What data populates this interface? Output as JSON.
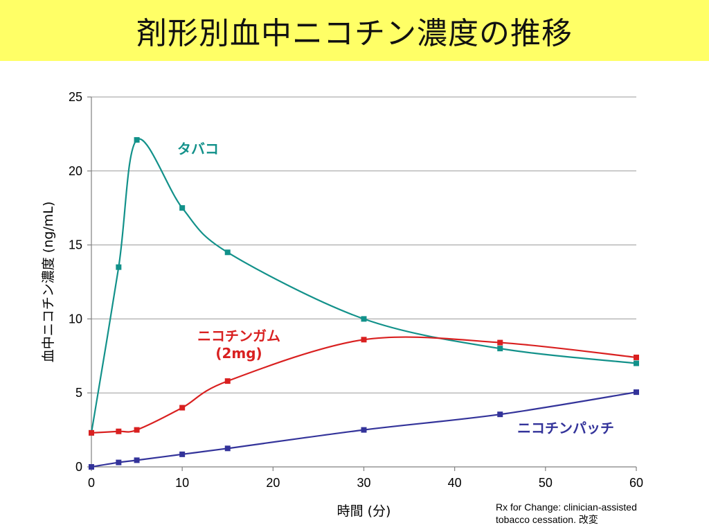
{
  "title": "剤形別血中ニコチン濃度の推移",
  "credit_lines": [
    "Rx for Change: clinician-assisted",
    "tobacco cessation. 改変"
  ],
  "chart_data": {
    "type": "line",
    "title": "剤形別血中ニコチン濃度の推移",
    "xlabel": "時間 (分)",
    "ylabel": "血中ニコチン濃度 (ng/mL)",
    "xlim": [
      0,
      60
    ],
    "ylim": [
      0,
      25
    ],
    "xticks": [
      0,
      10,
      20,
      30,
      40,
      50,
      60
    ],
    "yticks": [
      0,
      5,
      10,
      15,
      20,
      25
    ],
    "grid": "horizontal",
    "series": [
      {
        "name": "タバコ",
        "label_lines": [
          "タバコ"
        ],
        "color": "#12918a",
        "x": [
          0,
          3,
          5,
          10,
          15,
          30,
          45,
          60
        ],
        "values": [
          2.3,
          13.5,
          22.1,
          17.5,
          14.5,
          10.0,
          8.0,
          7.0
        ]
      },
      {
        "name": "ニコチンガム (2mg)",
        "label_lines": [
          "ニコチンガム",
          "(2mg)"
        ],
        "color": "#d92020",
        "x": [
          0,
          3,
          5,
          10,
          15,
          30,
          45,
          60
        ],
        "values": [
          2.3,
          2.4,
          2.5,
          4.0,
          5.8,
          8.6,
          8.4,
          7.4
        ]
      },
      {
        "name": "ニコチンパッチ",
        "label_lines": [
          "ニコチンパッチ"
        ],
        "color": "#33339a",
        "x": [
          0,
          3,
          5,
          10,
          15,
          30,
          45,
          60
        ],
        "values": [
          0.0,
          0.3,
          0.45,
          0.85,
          1.25,
          2.5,
          3.55,
          5.05
        ]
      }
    ]
  }
}
